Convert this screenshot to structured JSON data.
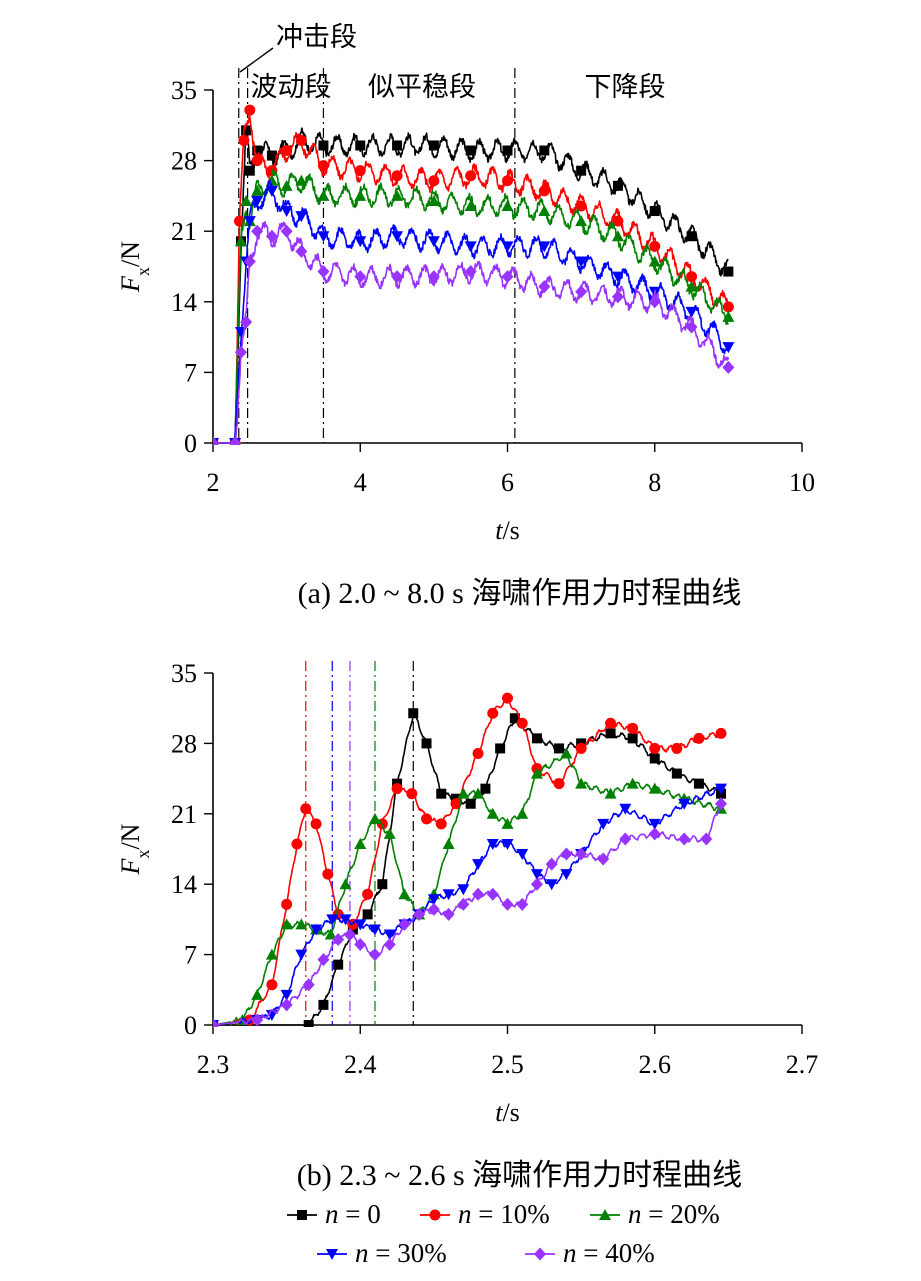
{
  "chart_data": [
    {
      "type": "line",
      "caption": "(a) 2.0 ~ 8.0 s 海啸作用力时程曲线",
      "xlabel_var": "t",
      "xlabel_unit": "/s",
      "ylabel_var": "F",
      "ylabel_sub": "x",
      "ylabel_unit": "/N",
      "xlim": [
        2,
        10
      ],
      "ylim": [
        0,
        35
      ],
      "xticks": [
        2,
        4,
        6,
        8,
        10
      ],
      "yticks": [
        0,
        7,
        14,
        21,
        28,
        35
      ],
      "stage_lines_x": [
        2.35,
        2.47,
        3.5,
        6.1
      ],
      "stage_labels": {
        "impact": "冲击段",
        "fluctuation": "波动段",
        "quasi_steady": "似平稳段",
        "descent": "下降段"
      },
      "series": [
        {
          "name": "n = 0",
          "color": "#000000",
          "marker": "square",
          "x": [
            2.0,
            2.3,
            2.38,
            2.45,
            2.5,
            2.6,
            2.8,
            3.0,
            3.2,
            3.5,
            4.0,
            4.5,
            5.0,
            5.5,
            6.0,
            6.5,
            7.0,
            7.5,
            8.0,
            8.5,
            9.0
          ],
          "y": [
            0,
            0,
            20,
            31,
            27,
            29,
            28.5,
            29,
            30,
            29.5,
            29.5,
            29.5,
            29.5,
            29,
            29,
            29,
            27,
            25.5,
            23,
            20.5,
            17
          ]
        },
        {
          "name": "n = 10%",
          "color": "#ff0000",
          "marker": "circle",
          "x": [
            2.0,
            2.3,
            2.36,
            2.42,
            2.5,
            2.6,
            2.8,
            3.0,
            3.2,
            3.5,
            4.0,
            4.5,
            5.0,
            5.5,
            6.0,
            6.5,
            7.0,
            7.5,
            8.0,
            8.5,
            9.0
          ],
          "y": [
            0,
            0,
            22,
            30,
            33,
            28,
            27,
            29,
            30,
            27.5,
            27,
            26.5,
            26,
            26.5,
            26,
            25,
            23.5,
            22,
            19.5,
            16.5,
            13.5
          ]
        },
        {
          "name": "n = 20%",
          "color": "#008000",
          "marker": "triangle-up",
          "x": [
            2.0,
            2.3,
            2.38,
            2.45,
            2.5,
            2.6,
            2.8,
            3.0,
            3.2,
            3.5,
            4.0,
            4.5,
            5.0,
            5.5,
            6.0,
            6.5,
            7.0,
            7.5,
            8.0,
            8.5,
            9.0
          ],
          "y": [
            0,
            0,
            20,
            24,
            22,
            25,
            26,
            25.5,
            26,
            24.5,
            24.5,
            24.5,
            24,
            23.5,
            23.5,
            23,
            22,
            20.5,
            18,
            15.5,
            12.5
          ]
        },
        {
          "name": "n = 30%",
          "color": "#0000ff",
          "marker": "triangle-down",
          "x": [
            2.0,
            2.3,
            2.38,
            2.45,
            2.5,
            2.6,
            2.8,
            3.0,
            3.2,
            3.5,
            4.0,
            4.5,
            5.0,
            5.5,
            6.0,
            6.5,
            7.0,
            7.5,
            8.0,
            8.5,
            9.0
          ],
          "y": [
            0,
            0,
            11,
            18,
            22,
            24,
            25,
            23,
            22.5,
            20.5,
            20,
            20.5,
            20,
            19.5,
            19.5,
            19.5,
            18,
            16.5,
            15,
            13,
            9.5
          ]
        },
        {
          "name": "n = 40%",
          "color": "#9933ff",
          "marker": "diamond",
          "x": [
            2.0,
            2.3,
            2.38,
            2.45,
            2.5,
            2.6,
            2.8,
            3.0,
            3.2,
            3.5,
            4.0,
            4.5,
            5.0,
            5.5,
            6.0,
            6.5,
            7.0,
            7.5,
            8.0,
            8.5,
            9.0
          ],
          "y": [
            0,
            0,
            9,
            12,
            18,
            21,
            20.5,
            21,
            19,
            17,
            16.5,
            16.5,
            16.5,
            17,
            16.5,
            15.5,
            15,
            14.5,
            14,
            11.5,
            7.5
          ]
        }
      ]
    },
    {
      "type": "line",
      "caption": "(b) 2.3 ~ 2.6 s 海啸作用力时程曲线",
      "xlabel_var": "t",
      "xlabel_unit": "/s",
      "ylabel_var": "F",
      "ylabel_sub": "x",
      "ylabel_unit": "/N",
      "xlim": [
        2.3,
        2.7
      ],
      "ylim": [
        0,
        35
      ],
      "xticks": [
        2.3,
        2.4,
        2.5,
        2.6,
        2.7
      ],
      "yticks": [
        0,
        7,
        14,
        21,
        28,
        35
      ],
      "peak_lines": [
        {
          "x": 2.363,
          "color": "#ff0000"
        },
        {
          "x": 2.381,
          "color": "#0000ff"
        },
        {
          "x": 2.393,
          "color": "#9933ff"
        },
        {
          "x": 2.41,
          "color": "#008000"
        },
        {
          "x": 2.436,
          "color": "#000000"
        }
      ],
      "series": [
        {
          "name": "n = 0",
          "color": "#000000",
          "marker": "square",
          "x": [
            2.3,
            2.365,
            2.375,
            2.385,
            2.395,
            2.405,
            2.415,
            2.425,
            2.436,
            2.445,
            2.455,
            2.465,
            2.475,
            2.485,
            2.495,
            2.505,
            2.52,
            2.535,
            2.55,
            2.57,
            2.585,
            2.6,
            2.615,
            2.63,
            2.645
          ],
          "y": [
            0,
            0,
            2,
            6,
            9.5,
            11,
            14,
            24,
            31,
            28,
            23,
            22.5,
            22,
            23.5,
            27.5,
            30.5,
            28.5,
            27.5,
            28,
            29,
            28.5,
            26.5,
            25,
            24,
            23
          ]
        },
        {
          "name": "n = 10%",
          "color": "#ff0000",
          "marker": "circle",
          "x": [
            2.3,
            2.325,
            2.34,
            2.35,
            2.357,
            2.363,
            2.37,
            2.378,
            2.385,
            2.395,
            2.405,
            2.415,
            2.425,
            2.435,
            2.445,
            2.455,
            2.465,
            2.48,
            2.49,
            2.5,
            2.51,
            2.52,
            2.535,
            2.55,
            2.57,
            2.585,
            2.6,
            2.615,
            2.63,
            2.645
          ],
          "y": [
            0,
            0.5,
            4,
            12,
            18,
            21.5,
            20,
            15,
            11,
            10,
            13,
            20,
            23.5,
            23,
            20.5,
            20,
            22,
            27,
            31,
            32.5,
            30,
            25.5,
            24,
            27.5,
            30,
            29.5,
            27.5,
            27.5,
            28.5,
            29
          ]
        },
        {
          "name": "n = 20%",
          "color": "#008000",
          "marker": "triangle-up",
          "x": [
            2.3,
            2.32,
            2.33,
            2.34,
            2.35,
            2.36,
            2.37,
            2.38,
            2.39,
            2.4,
            2.41,
            2.42,
            2.43,
            2.44,
            2.45,
            2.46,
            2.47,
            2.48,
            2.49,
            2.5,
            2.51,
            2.52,
            2.54,
            2.55,
            2.57,
            2.585,
            2.6,
            2.62,
            2.645
          ],
          "y": [
            0,
            0.5,
            3,
            7,
            10,
            10,
            9.5,
            9,
            14,
            18,
            20.5,
            19,
            13,
            11,
            13,
            18,
            23,
            23,
            21,
            20,
            21,
            25,
            27,
            24,
            23,
            24,
            23.5,
            22.5,
            21.5
          ]
        },
        {
          "name": "n = 30%",
          "color": "#0000ff",
          "marker": "triangle-down",
          "x": [
            2.3,
            2.33,
            2.34,
            2.35,
            2.36,
            2.37,
            2.381,
            2.39,
            2.4,
            2.41,
            2.42,
            2.43,
            2.44,
            2.45,
            2.46,
            2.47,
            2.48,
            2.49,
            2.5,
            2.51,
            2.52,
            2.53,
            2.54,
            2.55,
            2.565,
            2.58,
            2.6,
            2.62,
            2.645
          ],
          "y": [
            0,
            0.5,
            1,
            3,
            7,
            9.5,
            10.5,
            10.5,
            10,
            9.5,
            9,
            10,
            11,
            12.5,
            13,
            13.5,
            16,
            18,
            18,
            17,
            15,
            14,
            15,
            17,
            20,
            21.5,
            20,
            22,
            23.5
          ]
        },
        {
          "name": "n = 40%",
          "color": "#9933ff",
          "marker": "diamond",
          "x": [
            2.3,
            2.33,
            2.35,
            2.365,
            2.375,
            2.385,
            2.393,
            2.4,
            2.41,
            2.42,
            2.43,
            2.44,
            2.45,
            2.46,
            2.47,
            2.48,
            2.49,
            2.5,
            2.51,
            2.52,
            2.53,
            2.54,
            2.55,
            2.565,
            2.58,
            2.6,
            2.62,
            2.635,
            2.645
          ],
          "y": [
            0,
            0.5,
            2,
            4,
            6.5,
            8.5,
            9,
            8,
            7,
            8,
            10,
            11,
            11.5,
            11,
            12,
            13,
            13,
            12,
            12,
            14,
            16,
            17,
            17,
            16.5,
            18.5,
            19,
            18.5,
            18.5,
            22
          ]
        }
      ]
    }
  ],
  "legend": [
    {
      "var": "n",
      "rest": " = 0",
      "color": "#000000",
      "marker": "square"
    },
    {
      "var": "n",
      "rest": " = 10%",
      "color": "#ff0000",
      "marker": "circle"
    },
    {
      "var": "n",
      "rest": " = 20%",
      "color": "#008000",
      "marker": "triangle-up"
    },
    {
      "var": "n",
      "rest": " = 30%",
      "color": "#0000ff",
      "marker": "triangle-down"
    },
    {
      "var": "n",
      "rest": " = 40%",
      "color": "#9933ff",
      "marker": "diamond"
    }
  ]
}
